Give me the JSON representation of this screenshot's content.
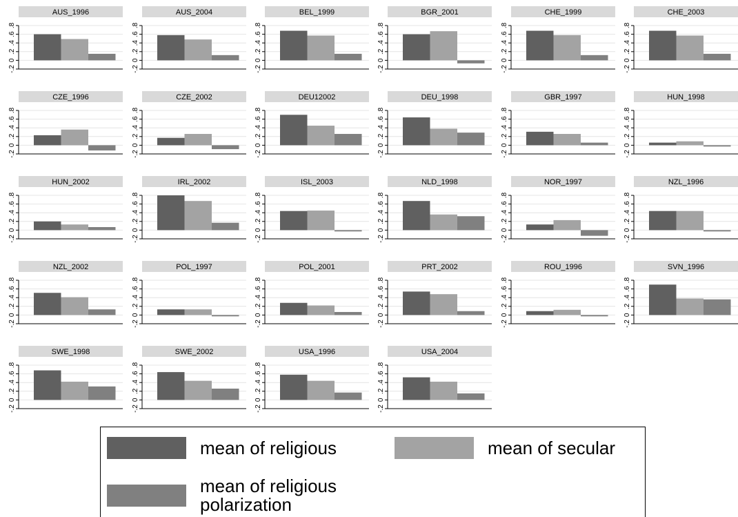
{
  "chart_data": {
    "type": "bar",
    "series": [
      {
        "name": "mean of religious",
        "color": "#606060"
      },
      {
        "name": "mean of secular",
        "color": "#a3a3a3"
      },
      {
        "name": "mean of religious polarization",
        "color": "#808080"
      }
    ],
    "ylim": [
      -0.2,
      0.8
    ],
    "yticks": [
      {
        "value": -0.2,
        "label": "-.2"
      },
      0,
      {
        "value": 0.2,
        "label": ".2"
      },
      {
        "value": 0.4,
        "label": ".4"
      },
      {
        "value": 0.6,
        "label": ".6"
      },
      {
        "value": 0.8,
        "label": ".8"
      }
    ],
    "grid": true,
    "panels": [
      {
        "title": "AUS_1996",
        "values": [
          0.6,
          0.49,
          0.15
        ]
      },
      {
        "title": "AUS_2004",
        "values": [
          0.58,
          0.48,
          0.12
        ]
      },
      {
        "title": "BEL_1999",
        "values": [
          0.68,
          0.57,
          0.15
        ]
      },
      {
        "title": "BGR_2001",
        "values": [
          0.6,
          0.67,
          -0.07
        ]
      },
      {
        "title": "CHE_1999",
        "values": [
          0.68,
          0.58,
          0.12
        ]
      },
      {
        "title": "CHE_2003",
        "values": [
          0.68,
          0.57,
          0.15
        ]
      },
      {
        "title": "CZE_1996",
        "values": [
          0.23,
          0.36,
          -0.12
        ]
      },
      {
        "title": "CZE_2002",
        "values": [
          0.17,
          0.26,
          -0.09
        ]
      },
      {
        "title": "DEU12002",
        "values": [
          0.7,
          0.45,
          0.26
        ]
      },
      {
        "title": "DEU_1998",
        "values": [
          0.64,
          0.38,
          0.29
        ]
      },
      {
        "title": "GBR_1997",
        "values": [
          0.31,
          0.26,
          0.06
        ]
      },
      {
        "title": "HUN_1998",
        "values": [
          0.06,
          0.09,
          -0.03
        ]
      },
      {
        "title": "HUN_2002",
        "values": [
          0.2,
          0.13,
          0.07
        ]
      },
      {
        "title": "IRL_2002",
        "values": [
          0.8,
          0.67,
          0.17
        ]
      },
      {
        "title": "ISL_2003",
        "values": [
          0.44,
          0.45,
          -0.03
        ]
      },
      {
        "title": "NLD_1998",
        "values": [
          0.67,
          0.36,
          0.32
        ]
      },
      {
        "title": "NOR_1997",
        "values": [
          0.13,
          0.23,
          -0.13
        ]
      },
      {
        "title": "NZL_1996",
        "values": [
          0.44,
          0.44,
          -0.03
        ]
      },
      {
        "title": "NZL_2002",
        "values": [
          0.51,
          0.41,
          0.13
        ]
      },
      {
        "title": "POL_1997",
        "values": [
          0.13,
          0.13,
          -0.03
        ]
      },
      {
        "title": "POL_2001",
        "values": [
          0.28,
          0.22,
          0.07
        ]
      },
      {
        "title": "PRT_2002",
        "values": [
          0.54,
          0.48,
          0.09
        ]
      },
      {
        "title": "ROU_1996",
        "values": [
          0.09,
          0.12,
          -0.03
        ]
      },
      {
        "title": "SVN_1996",
        "values": [
          0.7,
          0.38,
          0.36
        ]
      },
      {
        "title": "SWE_1998",
        "values": [
          0.68,
          0.42,
          0.31
        ]
      },
      {
        "title": "SWE_2002",
        "values": [
          0.64,
          0.44,
          0.26
        ]
      },
      {
        "title": "USA_1996",
        "values": [
          0.58,
          0.44,
          0.17
        ]
      },
      {
        "title": "USA_2004",
        "values": [
          0.52,
          0.42,
          0.15
        ]
      }
    ]
  }
}
